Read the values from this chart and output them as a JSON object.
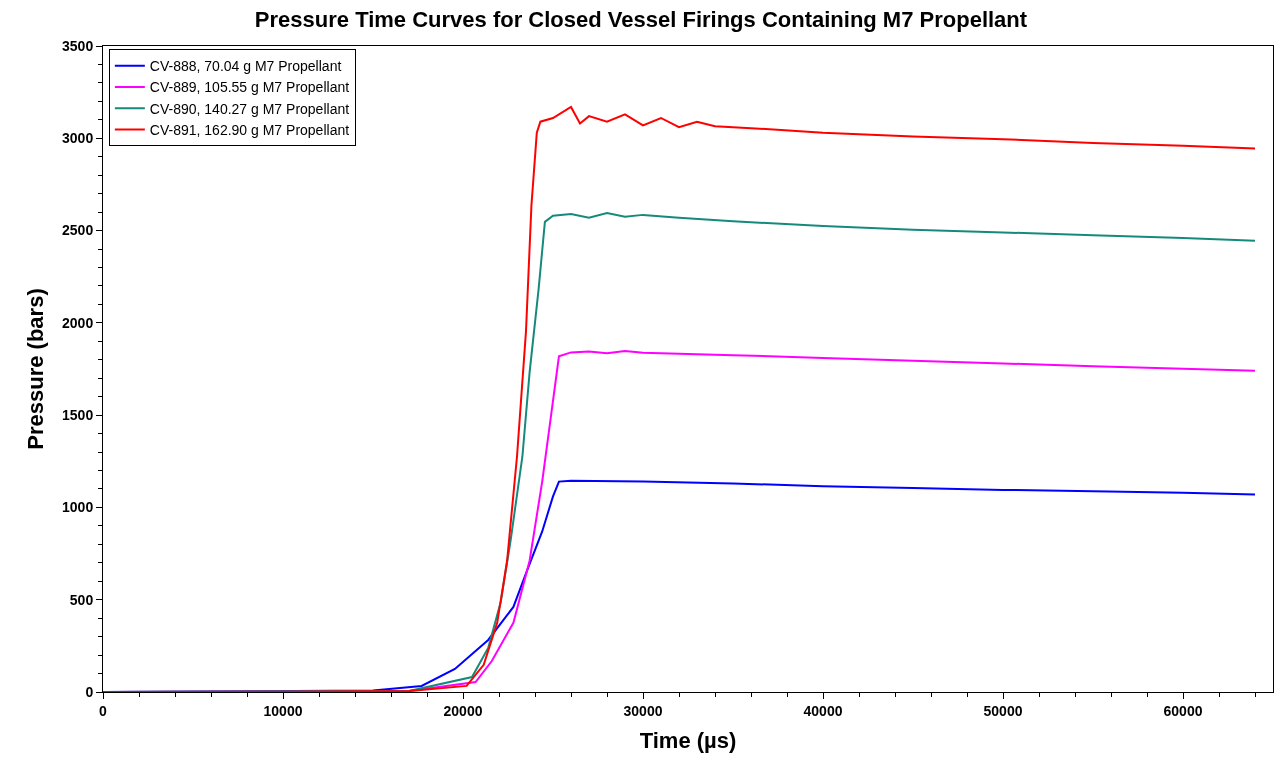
{
  "chart_data": {
    "type": "line",
    "title": "Pressure Time Curves for Closed Vessel Firings Containing M7 Propellant",
    "xlabel": "Time (µs)",
    "ylabel": "Pressure (bars)",
    "xlim": [
      0,
      65000
    ],
    "xticks": [
      0,
      10000,
      20000,
      30000,
      40000,
      50000,
      60000
    ],
    "ylim": [
      0,
      3500
    ],
    "yticks": [
      0,
      500,
      1000,
      1500,
      2000,
      2500,
      3000,
      3500
    ],
    "grid": false,
    "legend": "top left",
    "marker": "none",
    "line_style": "solid",
    "series": [
      {
        "name": "CV-888, 70.04 g M7 Propellant",
        "color": "#0000ff",
        "x": [
          0,
          15000,
          17700,
          19550,
          21400,
          22800,
          23600,
          24400,
          25000,
          25330,
          26000,
          30000,
          35000,
          40000,
          45000,
          50000,
          55000,
          60000,
          64000
        ],
        "values": [
          0,
          8,
          33,
          125,
          282,
          461,
          668,
          870,
          1060,
          1140,
          1145,
          1140,
          1130,
          1115,
          1105,
          1095,
          1088,
          1080,
          1070
        ]
      },
      {
        "name": "CV-889, 105.55 g M7 Propellant",
        "color": "#ff00ff",
        "x": [
          0,
          10000,
          17000,
          20700,
          21600,
          22800,
          23700,
          24400,
          24900,
          25330,
          26000,
          27000,
          28000,
          29000,
          30000,
          35000,
          40000,
          45000,
          50000,
          55000,
          60000,
          64000
        ],
        "values": [
          0,
          2,
          5,
          54,
          168,
          375,
          711,
          1140,
          1504,
          1819,
          1840,
          1845,
          1835,
          1848,
          1838,
          1825,
          1810,
          1795,
          1780,
          1765,
          1752,
          1740
        ]
      },
      {
        "name": "CV-890, 140.27 g M7 Propellant",
        "color": "#158a7c",
        "x": [
          0,
          17000,
          20500,
          21400,
          22100,
          22650,
          23300,
          23700,
          24200,
          24550,
          25000,
          26000,
          27000,
          28000,
          29000,
          30000,
          32000,
          35000,
          40000,
          45000,
          50000,
          55000,
          60000,
          64000
        ],
        "values": [
          0,
          5,
          81,
          239,
          489,
          825,
          1276,
          1732,
          2183,
          2547,
          2580,
          2590,
          2570,
          2595,
          2575,
          2585,
          2570,
          2550,
          2525,
          2505,
          2490,
          2475,
          2460,
          2445
        ]
      },
      {
        "name": "CV-891, 162.90 g M7 Propellant",
        "color": "#ff0000",
        "x": [
          0,
          10000,
          17000,
          20200,
          21150,
          21900,
          22450,
          23000,
          23500,
          23800,
          24100,
          24300,
          25000,
          26000,
          26500,
          27000,
          28000,
          29000,
          30000,
          31000,
          32000,
          33000,
          34000,
          36000,
          40000,
          45000,
          50000,
          55000,
          60000,
          64000
        ],
        "values": [
          0,
          2,
          5,
          33,
          147,
          375,
          711,
          1276,
          1955,
          2633,
          3030,
          3090,
          3110,
          3170,
          3080,
          3120,
          3090,
          3130,
          3070,
          3110,
          3060,
          3090,
          3065,
          3055,
          3030,
          3010,
          2995,
          2975,
          2960,
          2945
        ]
      }
    ]
  }
}
